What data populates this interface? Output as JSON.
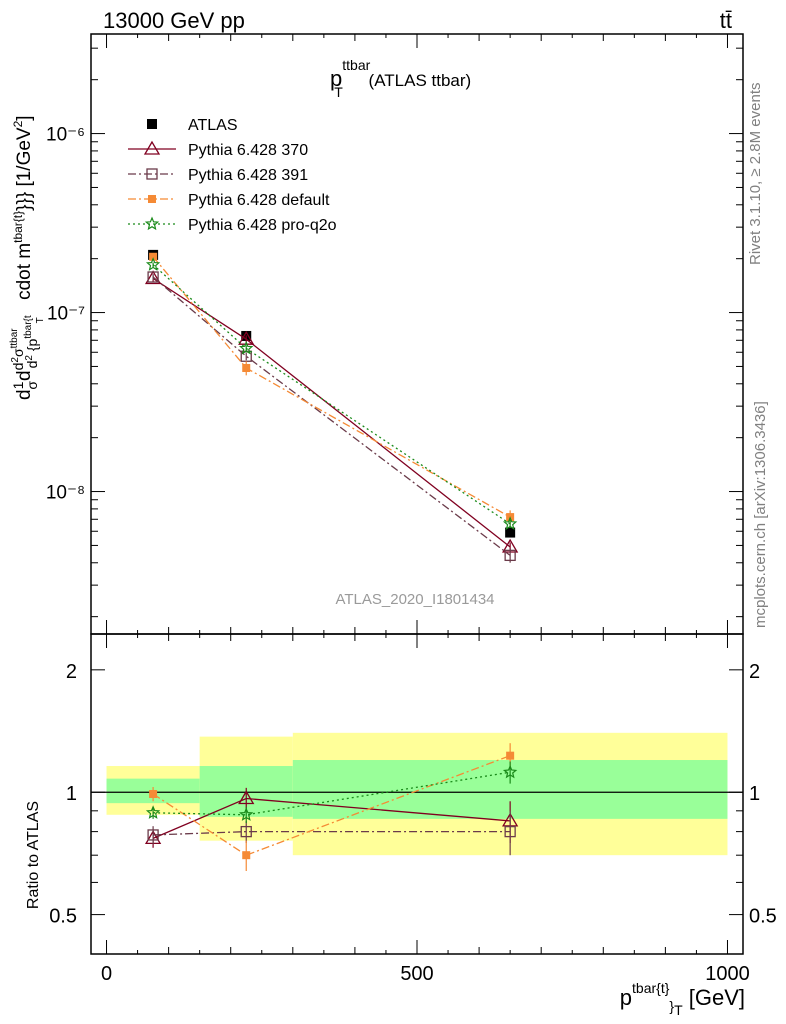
{
  "header": {
    "left": "13000 GeV pp",
    "right": "tt̄"
  },
  "side_text": {
    "rivet": "Rivet 3.1.10, ≥ 2.8M events",
    "mcplots": "mcplots.cern.ch [arXiv:1306.3436]"
  },
  "chart_data": [
    {
      "type": "line",
      "panel": "main",
      "title": "p_T^ttbar (ATLAS ttbar)",
      "title_main": "p",
      "title_sub": "T",
      "title_sup": "ttbar",
      "title_rest": " (ATLAS ttbar)",
      "watermark": "ATLAS_2020_I1801434",
      "ylabel": "d 1/σ d d²σ^ttbar / d² {p_T^tbar{t}} cdot m^tbar{t}}} [1/GeV²]",
      "yscale": "log",
      "xlim": [
        -25,
        1025
      ],
      "ylim": [
        1.6e-09,
        3.6e-06
      ],
      "ytick_labels": [
        "10⁻⁸",
        "10⁻⁷",
        "10⁻⁶"
      ],
      "ytick_values": [
        1e-08,
        1e-07,
        1e-06
      ],
      "legend_position": "top-left",
      "series": [
        {
          "name": "ATLAS",
          "color": "#000000",
          "marker": "filled-square",
          "line": "none",
          "x": [
            75,
            225,
            650
          ],
          "y": [
            2.1e-07,
            7.4e-08,
            5.9e-09
          ],
          "err": [
            0.05,
            0.05,
            0.05
          ]
        },
        {
          "name": "Pythia 6.428 370",
          "color": "#800020",
          "marker": "open-triangle",
          "line": "solid",
          "x": [
            75,
            225,
            650
          ],
          "y": [
            1.55e-07,
            7.1e-08,
            4.9e-09
          ],
          "err": [
            0.04,
            0.05,
            0.06
          ]
        },
        {
          "name": "Pythia 6.428 391",
          "color": "#6b3b4a",
          "marker": "open-square",
          "line": "dashdot",
          "x": [
            75,
            225,
            650
          ],
          "y": [
            1.58e-07,
            5.7e-08,
            4.4e-09
          ],
          "err": [
            0.04,
            0.05,
            0.09
          ]
        },
        {
          "name": "Pythia 6.428 default",
          "color": "#f58a35",
          "marker": "filled-square-small",
          "line": "dashdot",
          "x": [
            75,
            225,
            650
          ],
          "y": [
            2.05e-07,
            4.9e-08,
            7.2e-09
          ],
          "err": [
            0.04,
            0.09,
            0.09
          ]
        },
        {
          "name": "Pythia 6.428 pro-q2o",
          "color": "#1a8a1a",
          "marker": "open-star",
          "line": "dotted",
          "x": [
            75,
            225,
            650
          ],
          "y": [
            1.85e-07,
            6.3e-08,
            6.6e-09
          ],
          "err": [
            0.03,
            0.04,
            0.05
          ]
        }
      ]
    },
    {
      "type": "line",
      "panel": "ratio",
      "xlabel": "p_T^tbar{t}} [GeV]",
      "xlabel_main": "p",
      "xlabel_sup": "tbar{t}",
      "xlabel_sub": "}",
      "xlabel_subT": "T",
      "xlabel_unit": " [GeV]",
      "ylabel": "Ratio to ATLAS",
      "yscale": "log",
      "xlim": [
        -25,
        1025
      ],
      "ylim": [
        0.4,
        2.45
      ],
      "xtick_labels": [
        "0",
        "500",
        "1000"
      ],
      "xtick_values": [
        0,
        500,
        1000
      ],
      "ytick_labels": [
        "0.5",
        "1",
        "2"
      ],
      "ytick_values": [
        0.5,
        1,
        2
      ],
      "bands": {
        "bins": [
          [
            0,
            150
          ],
          [
            150,
            300
          ],
          [
            300,
            1000
          ]
        ],
        "inner": [
          [
            0.94,
            1.08
          ],
          [
            0.87,
            1.16
          ],
          [
            0.86,
            1.2
          ]
        ],
        "outer": [
          [
            0.88,
            1.16
          ],
          [
            0.76,
            1.37
          ],
          [
            0.7,
            1.4
          ]
        ],
        "inner_color": "#99ff99",
        "outer_color": "#ffff99"
      },
      "series": [
        {
          "name": "Pythia 6.428 370",
          "color": "#800020",
          "x": [
            75,
            225,
            650
          ],
          "y": [
            0.77,
            0.965,
            0.85
          ],
          "err": [
            0.04,
            0.06,
            0.1
          ]
        },
        {
          "name": "Pythia 6.428 391",
          "color": "#6b3b4a",
          "x": [
            75,
            225,
            650
          ],
          "y": [
            0.785,
            0.8,
            0.8
          ],
          "err": [
            0.04,
            0.05,
            0.1
          ]
        },
        {
          "name": "Pythia 6.428 default",
          "color": "#f58a35",
          "x": [
            75,
            225,
            650
          ],
          "y": [
            0.99,
            0.7,
            1.23
          ],
          "err": [
            0.04,
            0.06,
            0.09
          ]
        },
        {
          "name": "Pythia 6.428 pro-q2o",
          "color": "#1a8a1a",
          "x": [
            75,
            225,
            650
          ],
          "y": [
            0.89,
            0.88,
            1.12
          ],
          "err": [
            0.03,
            0.04,
            0.07
          ]
        }
      ]
    }
  ]
}
